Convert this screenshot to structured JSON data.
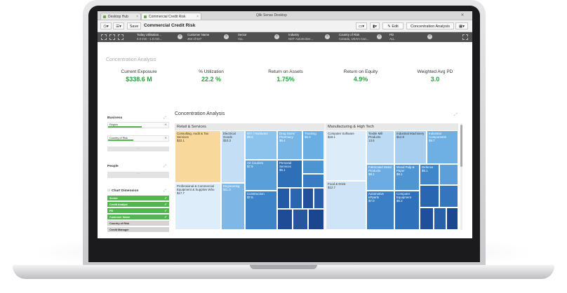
{
  "window": {
    "title": "Qlik Sense Desktop",
    "tabs": [
      {
        "label": "Desktop Hub"
      },
      {
        "label": "Commercial Credit Risk"
      }
    ]
  },
  "toolbar": {
    "save_label": "Save",
    "app_title": "Commercial Credit Risk",
    "edit_label": "Edit",
    "sheet_label": "Concentration Analysis"
  },
  "selections": [
    {
      "field": "Today Utilisation...",
      "value": "0.0 mm - 1.0 mm..."
    },
    {
      "field": "Customer Name",
      "value": "464 of 527"
    },
    {
      "field": "Sector",
      "value": "ALL"
    },
    {
      "field": "Industry",
      "value": "NOT Automotive..."
    },
    {
      "field": "Country of Risk",
      "value": "Canada, USAm Can..."
    },
    {
      "field": "PD",
      "value": "ALL"
    }
  ],
  "sheet": {
    "title": "Concentration Analysis"
  },
  "kpis": [
    {
      "label": "Current Exposure",
      "value": "$338.6 M"
    },
    {
      "label": "% Utilization",
      "value": "22.2 %"
    },
    {
      "label": "Return on Assets",
      "value": "1.75%"
    },
    {
      "label": "Return on Equity",
      "value": "4.9%"
    },
    {
      "label": "Weighted Avg PD",
      "value": "3.0"
    }
  ],
  "filters": {
    "business_title": "Business",
    "business_rows": [
      "Region",
      "Country of Risk"
    ],
    "people_title": "People",
    "dimension_title": "Chart Dimension",
    "dimension_items": [
      {
        "label": "Sector",
        "on": true
      },
      {
        "label": "Credit Analyst",
        "on": true
      },
      {
        "label": "PD",
        "on": true
      },
      {
        "label": "Customer Name",
        "on": true
      },
      {
        "label": "Country of Risk",
        "on": false
      },
      {
        "label": "Credit Manager",
        "on": false
      }
    ]
  },
  "treemap": {
    "title": "Concentration Analysis",
    "groups": [
      {
        "name": "Retail & Services"
      },
      {
        "name": "Manufacturing & High Tech"
      }
    ],
    "cells": [
      {
        "label": "Consulting, Audit & Tax Services",
        "value": "$22.1"
      },
      {
        "label": "Professional & Commercial Equipment & Supplies Who",
        "value": "$17.7"
      },
      {
        "label": "Electrical Goods",
        "value": "$10.3"
      },
      {
        "label": "Engineering",
        "value": "$11.0"
      },
      {
        "label": "DIY / Hardware",
        "value": "$9.5"
      },
      {
        "label": "Air Couriers",
        "value": "$7.9"
      },
      {
        "label": "Construction",
        "value": "$7.6"
      },
      {
        "label": "Drug Store/ Pharmacy",
        "value": "$6.4"
      },
      {
        "label": "Personal Services",
        "value": "$6.1"
      },
      {
        "label": "Trucking",
        "value": "$6.3"
      },
      {
        "label": "Computer Software",
        "value": "$18.1"
      },
      {
        "label": "Food & Drink",
        "value": "$12.7"
      },
      {
        "label": "Textile Mill Products",
        "value": "13.6"
      },
      {
        "label": "Industrial Machinery",
        "value": "$12.8"
      },
      {
        "label": "Industrial Components",
        "value": "$9.7"
      },
      {
        "label": "Fabricated Metal Products",
        "value": "$8.1"
      },
      {
        "label": "Wood Pulp & Paper",
        "value": "$8.1"
      },
      {
        "label": "Defence",
        "value": "$6.1"
      },
      {
        "label": "Automotive ePparts",
        "value": "$7.0"
      },
      {
        "label": "Computer Equipment",
        "value": "$6.2"
      }
    ]
  },
  "colors": {
    "accent": "#52b550",
    "kpi": "#27a33a",
    "selection_bar": "#505050"
  }
}
